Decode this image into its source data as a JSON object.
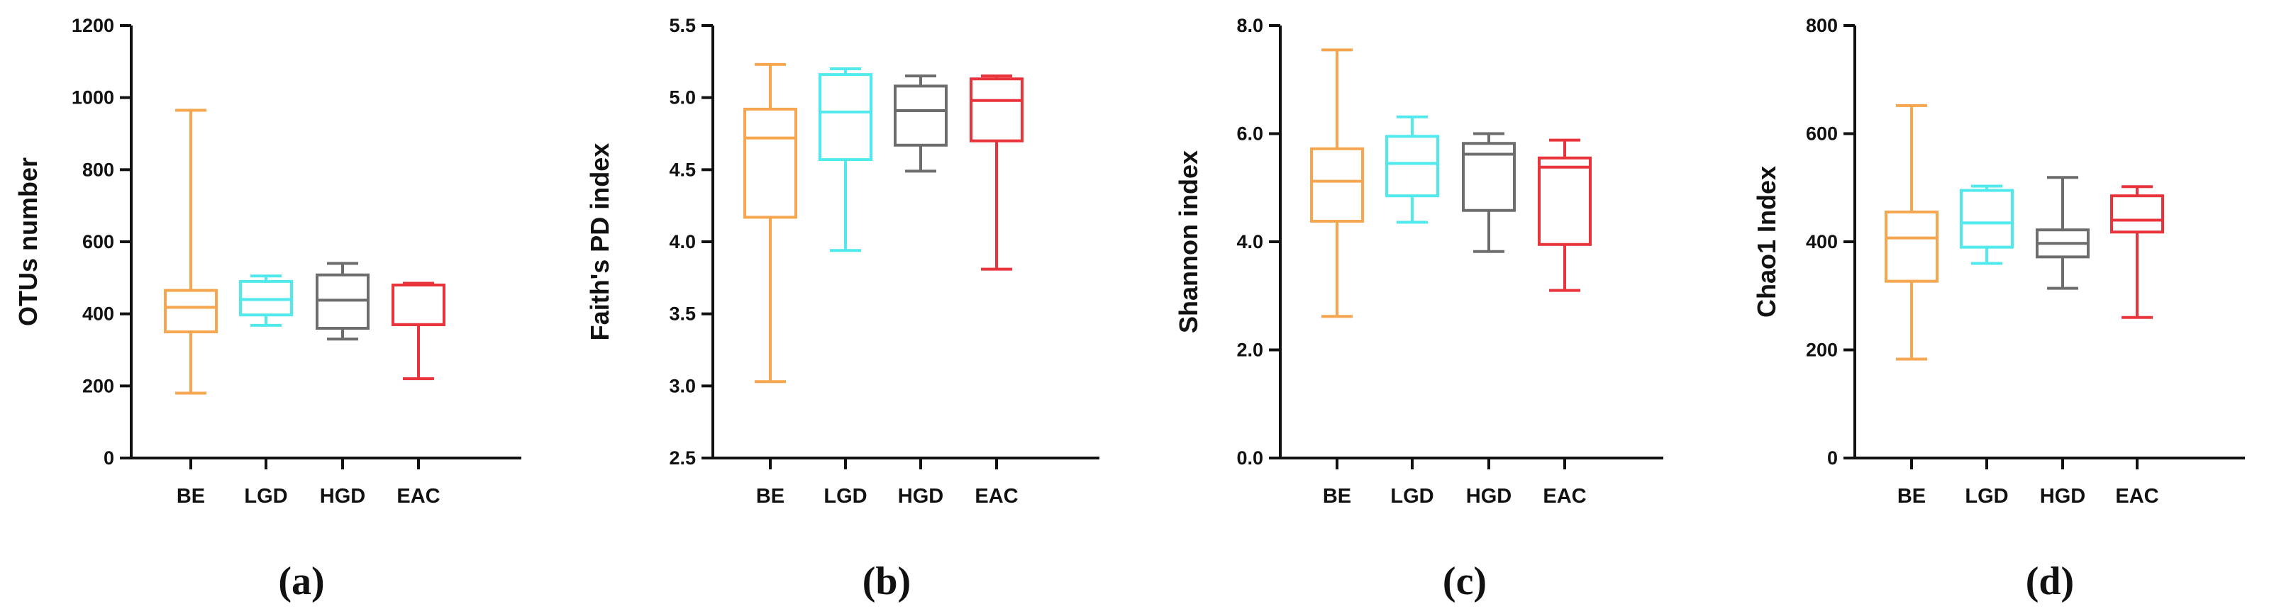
{
  "colors": {
    "BE": "#f5a64f",
    "LGD": "#4fe9ee",
    "HGD": "#6d6d6d",
    "EAC": "#e8343a"
  },
  "chart_data": [
    {
      "type": "box",
      "panel_label": "(a)",
      "ylabel": "OTUs number",
      "ylim": [
        0,
        1200
      ],
      "yticks": [
        0,
        200,
        400,
        600,
        800,
        1000,
        1200
      ],
      "ytick_labels": [
        "0",
        "200",
        "400",
        "600",
        "800",
        "1000",
        "1200"
      ],
      "categories": [
        "BE",
        "LGD",
        "HGD",
        "EAC"
      ],
      "boxes": [
        {
          "min": 180,
          "q1": 350,
          "median": 418,
          "q3": 465,
          "max": 965
        },
        {
          "min": 368,
          "q1": 397,
          "median": 440,
          "q3": 490,
          "max": 505
        },
        {
          "min": 330,
          "q1": 360,
          "median": 438,
          "q3": 508,
          "max": 540
        },
        {
          "min": 220,
          "q1": 370,
          "median": 370,
          "q3": 480,
          "max": 485
        }
      ]
    },
    {
      "type": "box",
      "panel_label": "(b)",
      "ylabel": "Faith's PD index",
      "ylim": [
        2.5,
        5.5
      ],
      "yticks": [
        2.5,
        3.0,
        3.5,
        4.0,
        4.5,
        5.0,
        5.5
      ],
      "ytick_labels": [
        "2.5",
        "3.0",
        "3.5",
        "4.0",
        "4.5",
        "5.0",
        "5.5"
      ],
      "categories": [
        "BE",
        "LGD",
        "HGD",
        "EAC"
      ],
      "boxes": [
        {
          "min": 3.03,
          "q1": 4.17,
          "median": 4.72,
          "q3": 4.92,
          "max": 5.23
        },
        {
          "min": 3.94,
          "q1": 4.57,
          "median": 4.9,
          "q3": 5.16,
          "max": 5.2
        },
        {
          "min": 4.49,
          "q1": 4.67,
          "median": 4.91,
          "q3": 5.08,
          "max": 5.15
        },
        {
          "min": 3.81,
          "q1": 4.7,
          "median": 4.98,
          "q3": 5.13,
          "max": 5.15
        }
      ]
    },
    {
      "type": "box",
      "panel_label": "(c)",
      "ylabel": "Shannon index",
      "ylim": [
        0,
        8
      ],
      "yticks": [
        0,
        2,
        4,
        6,
        8
      ],
      "ytick_labels": [
        "0.0",
        "2.0",
        "4.0",
        "6.0",
        "8.0"
      ],
      "categories": [
        "BE",
        "LGD",
        "HGD",
        "EAC"
      ],
      "boxes": [
        {
          "min": 2.62,
          "q1": 4.38,
          "median": 5.12,
          "q3": 5.72,
          "max": 7.55
        },
        {
          "min": 4.36,
          "q1": 4.85,
          "median": 5.45,
          "q3": 5.95,
          "max": 6.31
        },
        {
          "min": 3.82,
          "q1": 4.58,
          "median": 5.62,
          "q3": 5.82,
          "max": 6.0
        },
        {
          "min": 3.1,
          "q1": 3.95,
          "median": 5.38,
          "q3": 5.55,
          "max": 5.88
        }
      ]
    },
    {
      "type": "box",
      "panel_label": "(d)",
      "ylabel": "Chao1 Index",
      "ylim": [
        0,
        800
      ],
      "yticks": [
        0,
        200,
        400,
        600,
        800
      ],
      "ytick_labels": [
        "0",
        "200",
        "400",
        "600",
        "800"
      ],
      "categories": [
        "BE",
        "LGD",
        "HGD",
        "EAC"
      ],
      "boxes": [
        {
          "min": 183,
          "q1": 327,
          "median": 407,
          "q3": 455,
          "max": 652
        },
        {
          "min": 360,
          "q1": 390,
          "median": 435,
          "q3": 495,
          "max": 503
        },
        {
          "min": 314,
          "q1": 372,
          "median": 397,
          "q3": 422,
          "max": 519
        },
        {
          "min": 260,
          "q1": 418,
          "median": 440,
          "q3": 485,
          "max": 502
        }
      ]
    }
  ]
}
